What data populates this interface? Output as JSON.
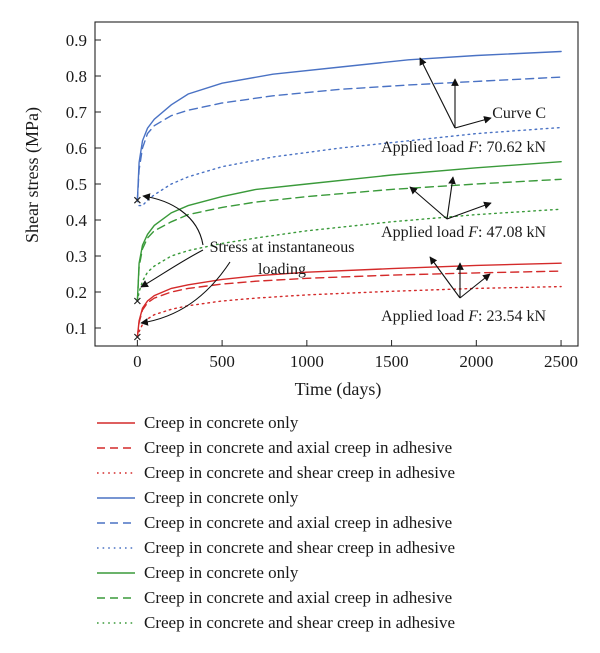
{
  "chart_data": {
    "type": "line",
    "xlabel": "Time (days)",
    "ylabel": "Shear stress (MPa)",
    "xlim": [
      -250,
      2600
    ],
    "ylim": [
      0.05,
      0.95
    ],
    "xticks": [
      0,
      500,
      1000,
      1500,
      2000,
      2500
    ],
    "yticks": [
      0.1,
      0.2,
      0.3,
      0.4,
      0.5,
      0.6,
      0.7,
      0.8,
      0.9
    ],
    "xtick_labels": [
      "0",
      "500",
      "1000",
      "1500",
      "2000",
      "2500"
    ],
    "ytick_labels": [
      "0.1",
      "0.2",
      "0.3",
      "0.4",
      "0.5",
      "0.6",
      "0.7",
      "0.8",
      "0.9"
    ],
    "grid": false,
    "legend_position": "below",
    "instantaneous_points": [
      {
        "x": 0,
        "y": 0.075
      },
      {
        "x": 0,
        "y": 0.175
      },
      {
        "x": 0,
        "y": 0.455
      }
    ],
    "series": [
      {
        "name": "Creep in concrete only",
        "color": "#d42a2a",
        "style": "solid",
        "x": [
          0,
          10,
          30,
          60,
          100,
          200,
          300,
          500,
          700,
          1000,
          1500,
          2000,
          2500
        ],
        "y": [
          0.075,
          0.12,
          0.155,
          0.175,
          0.19,
          0.21,
          0.22,
          0.235,
          0.245,
          0.255,
          0.265,
          0.274,
          0.28
        ]
      },
      {
        "name": "Creep in concrete and axial creep in adhesive",
        "color": "#d42a2a",
        "style": "dashed",
        "x": [
          0,
          10,
          30,
          60,
          100,
          200,
          300,
          500,
          700,
          1000,
          1500,
          2000,
          2500
        ],
        "y": [
          0.075,
          0.115,
          0.15,
          0.17,
          0.183,
          0.2,
          0.21,
          0.222,
          0.23,
          0.238,
          0.247,
          0.253,
          0.258
        ]
      },
      {
        "name": "Creep in concrete and shear creep in adhesive",
        "color": "#d42a2a",
        "style": "dotted",
        "x": [
          0,
          10,
          30,
          60,
          100,
          200,
          300,
          500,
          700,
          1000,
          1500,
          2000,
          2500
        ],
        "y": [
          0.075,
          0.09,
          0.11,
          0.125,
          0.137,
          0.152,
          0.162,
          0.175,
          0.183,
          0.192,
          0.202,
          0.21,
          0.215
        ]
      },
      {
        "name": "Creep in concrete only",
        "color": "#4a72c4",
        "style": "solid",
        "x": [
          0,
          10,
          30,
          60,
          100,
          200,
          300,
          500,
          800,
          1200,
          1600,
          2000,
          2500
        ],
        "y": [
          0.455,
          0.56,
          0.62,
          0.655,
          0.68,
          0.72,
          0.75,
          0.78,
          0.805,
          0.825,
          0.845,
          0.857,
          0.868
        ]
      },
      {
        "name": "Creep in concrete and axial creep in adhesive",
        "color": "#4a72c4",
        "style": "dashed",
        "x": [
          0,
          10,
          30,
          60,
          100,
          200,
          300,
          500,
          800,
          1200,
          1600,
          2000,
          2500
        ],
        "y": [
          0.455,
          0.54,
          0.6,
          0.64,
          0.662,
          0.69,
          0.705,
          0.725,
          0.745,
          0.763,
          0.775,
          0.785,
          0.797
        ]
      },
      {
        "name": "Creep in concrete and shear creep in adhesive",
        "color": "#4a72c4",
        "style": "dotted",
        "x": [
          0,
          10,
          30,
          60,
          100,
          200,
          300,
          500,
          800,
          1200,
          1600,
          2000,
          2500
        ],
        "y": [
          0.455,
          0.44,
          0.44,
          0.455,
          0.47,
          0.5,
          0.52,
          0.548,
          0.575,
          0.6,
          0.62,
          0.64,
          0.657
        ]
      },
      {
        "name": "Creep in concrete only",
        "color": "#3a9a3a",
        "style": "solid",
        "x": [
          0,
          10,
          30,
          60,
          100,
          200,
          300,
          500,
          700,
          1000,
          1500,
          2000,
          2500
        ],
        "y": [
          0.175,
          0.28,
          0.33,
          0.36,
          0.385,
          0.42,
          0.44,
          0.465,
          0.485,
          0.5,
          0.525,
          0.545,
          0.562
        ]
      },
      {
        "name": "Creep in concrete and axial creep in adhesive",
        "color": "#3a9a3a",
        "style": "dashed",
        "x": [
          0,
          10,
          30,
          60,
          100,
          200,
          300,
          500,
          700,
          1000,
          1500,
          2000,
          2500
        ],
        "y": [
          0.175,
          0.27,
          0.32,
          0.35,
          0.37,
          0.395,
          0.415,
          0.435,
          0.45,
          0.465,
          0.485,
          0.5,
          0.513
        ]
      },
      {
        "name": "Creep in concrete and shear creep in adhesive",
        "color": "#3a9a3a",
        "style": "dotted",
        "x": [
          0,
          10,
          30,
          60,
          100,
          200,
          300,
          500,
          700,
          1000,
          1500,
          2000,
          2500
        ],
        "y": [
          0.175,
          0.2,
          0.23,
          0.255,
          0.272,
          0.3,
          0.315,
          0.335,
          0.35,
          0.37,
          0.395,
          0.415,
          0.43
        ]
      }
    ],
    "annotations": [
      {
        "id": "curve-c",
        "text": "Curve C"
      },
      {
        "id": "load-70",
        "text_prefix": "Applied load ",
        "text_var": "F",
        "text_suffix": ": 70.62 kN"
      },
      {
        "id": "load-47",
        "text_prefix": "Applied load ",
        "text_var": "F",
        "text_suffix": ": 47.08 kN"
      },
      {
        "id": "load-23",
        "text_prefix": "Applied load ",
        "text_var": "F",
        "text_suffix": ": 23.54 kN"
      },
      {
        "id": "stress-inst",
        "line1": "Stress at instantaneous",
        "line2": "loading"
      }
    ]
  }
}
